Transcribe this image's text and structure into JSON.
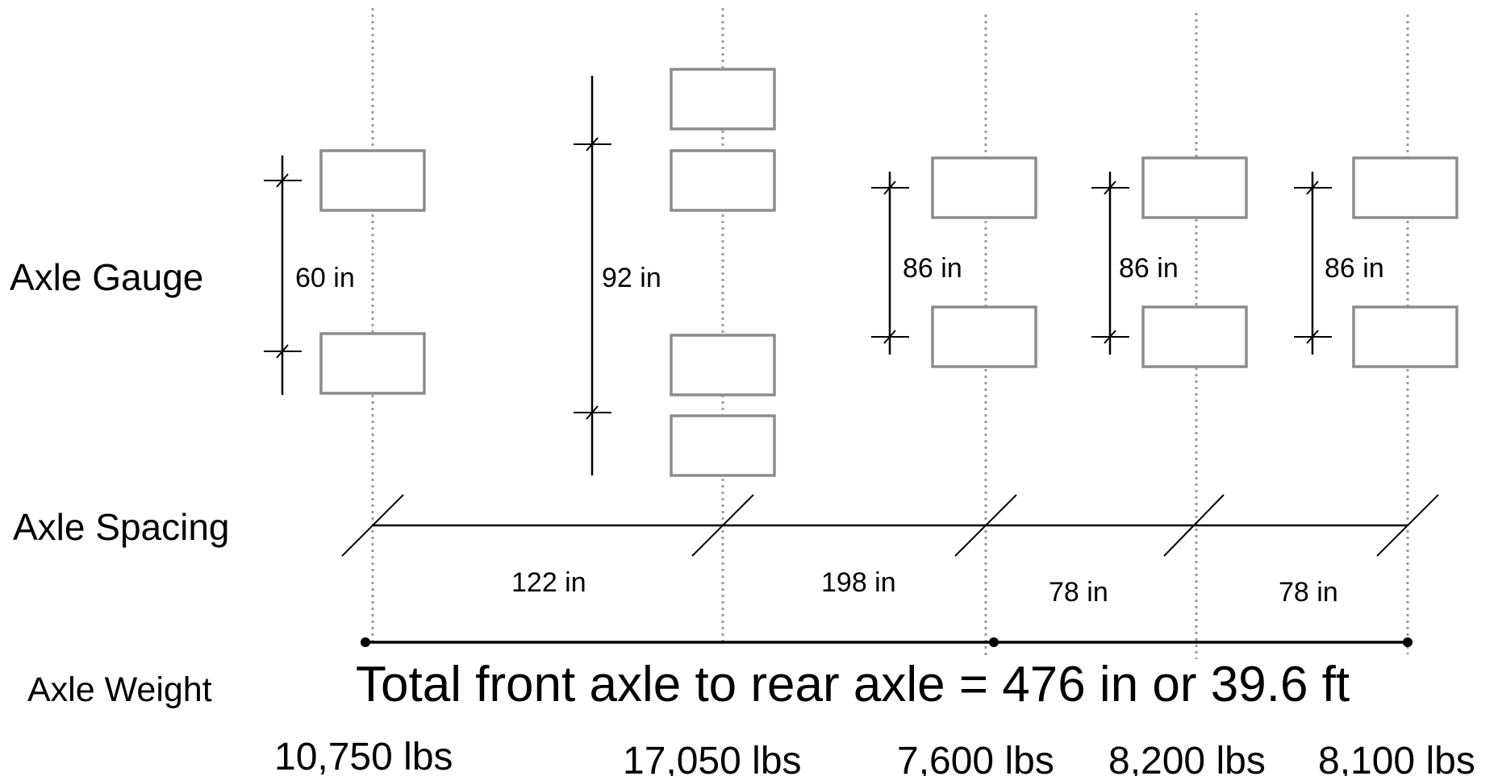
{
  "row_labels": {
    "gauge": "Axle Gauge",
    "spacing": "Axle Spacing",
    "weight": "Axle Weight"
  },
  "axles": [
    {
      "gauge_label": "60 in",
      "weight_label": "10,750 lbs",
      "dual": false
    },
    {
      "gauge_label": "92 in",
      "weight_label": "17,050 lbs",
      "dual": true
    },
    {
      "gauge_label": "86 in",
      "weight_label": "7,600 lbs",
      "dual": false
    },
    {
      "gauge_label": "86 in",
      "weight_label": "8,200 lbs",
      "dual": false
    },
    {
      "gauge_label": "86 in",
      "weight_label": "8,100 lbs",
      "dual": false
    }
  ],
  "spacings": [
    "122 in",
    "198 in",
    "78 in",
    "78 in"
  ],
  "total_label": "Total front axle to rear axle = 476 in or 39.6 ft",
  "colors": {
    "wheel_outline": "#8c8c8c",
    "centerline": "#9a9a9a",
    "dimension": "#000000"
  }
}
